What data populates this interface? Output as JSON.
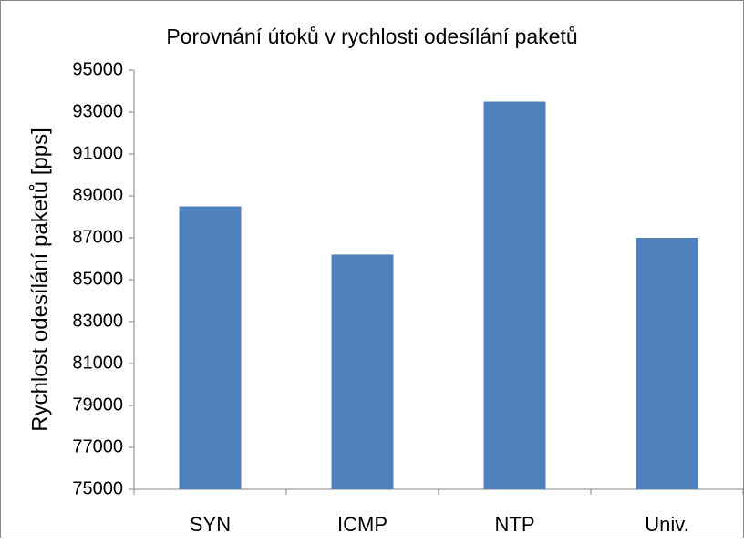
{
  "chart_data": {
    "type": "bar",
    "title": "Porovnání útoků v rychlosti odesílání paketů",
    "y_label": "Rychlost odesílání paketů [pps]",
    "categories": [
      "SYN",
      "ICMP",
      "NTP",
      "Univ."
    ],
    "values": [
      88500,
      86200,
      93500,
      87000
    ],
    "color": "#4f81bd",
    "ylim": [
      75000,
      95000
    ],
    "yticks": [
      75000,
      77000,
      79000,
      81000,
      83000,
      85000,
      87000,
      89000,
      91000,
      93000,
      95000
    ],
    "grid": false
  }
}
